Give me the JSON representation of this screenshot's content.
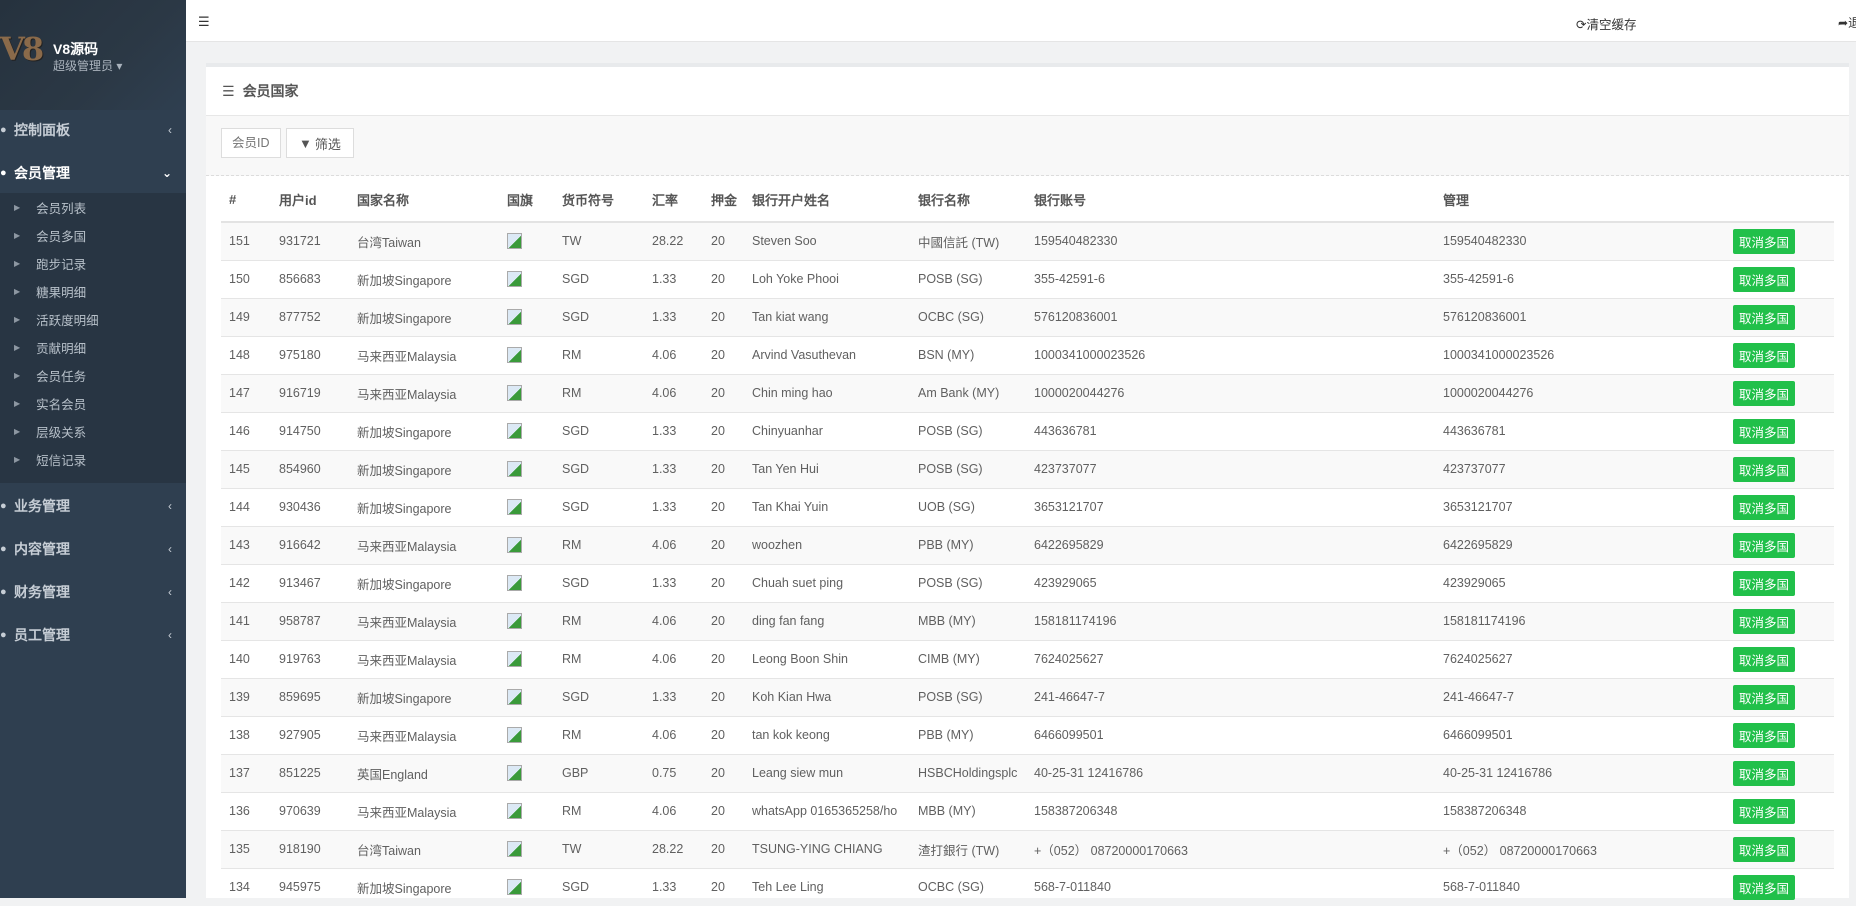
{
  "brand": {
    "logo_text": "V8",
    "name": "V8源码",
    "role": "超级管理员 ▾"
  },
  "sidebar": {
    "top_menus": [
      {
        "label": "控制面板",
        "icon": "dashboard-icon",
        "active": false
      },
      {
        "label": "会员管理",
        "icon": "user-icon",
        "active": true
      }
    ],
    "sub_items": [
      "会员列表",
      "会员多国",
      "跑步记录",
      "糖果明细",
      "活跃度明细",
      "贡献明细",
      "会员任务",
      "实名会员",
      "层级关系",
      "短信记录"
    ],
    "bottom_menus": [
      {
        "label": "业务管理",
        "icon": "briefcase-icon"
      },
      {
        "label": "内容管理",
        "icon": "content-icon"
      },
      {
        "label": "财务管理",
        "icon": "finance-icon"
      },
      {
        "label": "员工管理",
        "icon": "staff-icon"
      }
    ]
  },
  "topbar": {
    "clear_cache": "清空缓存",
    "logout": "退"
  },
  "panel": {
    "title": "会员国家",
    "filter_placeholder": "会员ID",
    "filter_button": "筛选"
  },
  "table": {
    "headers": [
      "#",
      "用户id",
      "国家名称",
      "国旗",
      "货币符号",
      "汇率",
      "押金",
      "银行开户姓名",
      "银行名称",
      "银行账号",
      "管理",
      ""
    ],
    "action_label": "取消多国",
    "rows": [
      [
        "151",
        "931721",
        "台湾Taiwan",
        "TW",
        "28.22",
        "20",
        "Steven Soo",
        "中國信託 (TW)",
        "159540482330",
        "159540482330"
      ],
      [
        "150",
        "856683",
        "新加坡Singapore",
        "SGD",
        "1.33",
        "20",
        "Loh Yoke Phooi",
        "POSB (SG)",
        "355-42591-6",
        "355-42591-6"
      ],
      [
        "149",
        "877752",
        "新加坡Singapore",
        "SGD",
        "1.33",
        "20",
        "Tan kiat wang",
        "OCBC (SG)",
        "576120836001",
        "576120836001"
      ],
      [
        "148",
        "975180",
        "马来西亚Malaysia",
        "RM",
        "4.06",
        "20",
        "Arvind Vasuthevan",
        "BSN (MY)",
        "1000341000023526",
        "1000341000023526"
      ],
      [
        "147",
        "916719",
        "马来西亚Malaysia",
        "RM",
        "4.06",
        "20",
        "Chin ming hao",
        "Am Bank (MY)",
        "1000020044276",
        "1000020044276"
      ],
      [
        "146",
        "914750",
        "新加坡Singapore",
        "SGD",
        "1.33",
        "20",
        "Chinyuanhar",
        "POSB (SG)",
        "443636781",
        "443636781"
      ],
      [
        "145",
        "854960",
        "新加坡Singapore",
        "SGD",
        "1.33",
        "20",
        "Tan Yen Hui",
        "POSB (SG)",
        "423737077",
        "423737077"
      ],
      [
        "144",
        "930436",
        "新加坡Singapore",
        "SGD",
        "1.33",
        "20",
        "Tan Khai Yuin",
        "UOB (SG)",
        "3653121707",
        "3653121707"
      ],
      [
        "143",
        "916642",
        "马来西亚Malaysia",
        "RM",
        "4.06",
        "20",
        "woozhen",
        "PBB (MY)",
        "6422695829",
        "6422695829"
      ],
      [
        "142",
        "913467",
        "新加坡Singapore",
        "SGD",
        "1.33",
        "20",
        "Chuah suet ping",
        "POSB (SG)",
        "423929065",
        "423929065"
      ],
      [
        "141",
        "958787",
        "马来西亚Malaysia",
        "RM",
        "4.06",
        "20",
        "ding fan fang",
        "MBB (MY)",
        "158181174196",
        "158181174196"
      ],
      [
        "140",
        "919763",
        "马来西亚Malaysia",
        "RM",
        "4.06",
        "20",
        "Leong Boon Shin",
        "CIMB (MY)",
        "7624025627",
        "7624025627"
      ],
      [
        "139",
        "859695",
        "新加坡Singapore",
        "SGD",
        "1.33",
        "20",
        "Koh Kian Hwa",
        "POSB (SG)",
        "241-46647-7",
        "241-46647-7"
      ],
      [
        "138",
        "927905",
        "马来西亚Malaysia",
        "RM",
        "4.06",
        "20",
        "tan kok keong",
        "PBB (MY)",
        "6466099501",
        "6466099501"
      ],
      [
        "137",
        "851225",
        "英国England",
        "GBP",
        "0.75",
        "20",
        "Leang siew mun",
        "HSBCHoldingsplc",
        "40-25-31 12416786",
        "40-25-31 12416786"
      ],
      [
        "136",
        "970639",
        "马来西亚Malaysia",
        "RM",
        "4.06",
        "20",
        "whatsApp 0165365258/ho",
        "MBB (MY)",
        "158387206348",
        "158387206348"
      ],
      [
        "135",
        "918190",
        "台湾Taiwan",
        "TW",
        "28.22",
        "20",
        "TSUNG-YING CHIANG",
        "渣打銀行 (TW)",
        "+（052） 08720000170663",
        "+（052） 08720000170663"
      ],
      [
        "134",
        "945975",
        "新加坡Singapore",
        "SGD",
        "1.33",
        "20",
        "Teh Lee Ling",
        "OCBC (SG)",
        "568-7-011840",
        "568-7-011840"
      ]
    ]
  },
  "colors": {
    "sidebar": "#2f3f50",
    "accent_green": "#21c04a"
  }
}
